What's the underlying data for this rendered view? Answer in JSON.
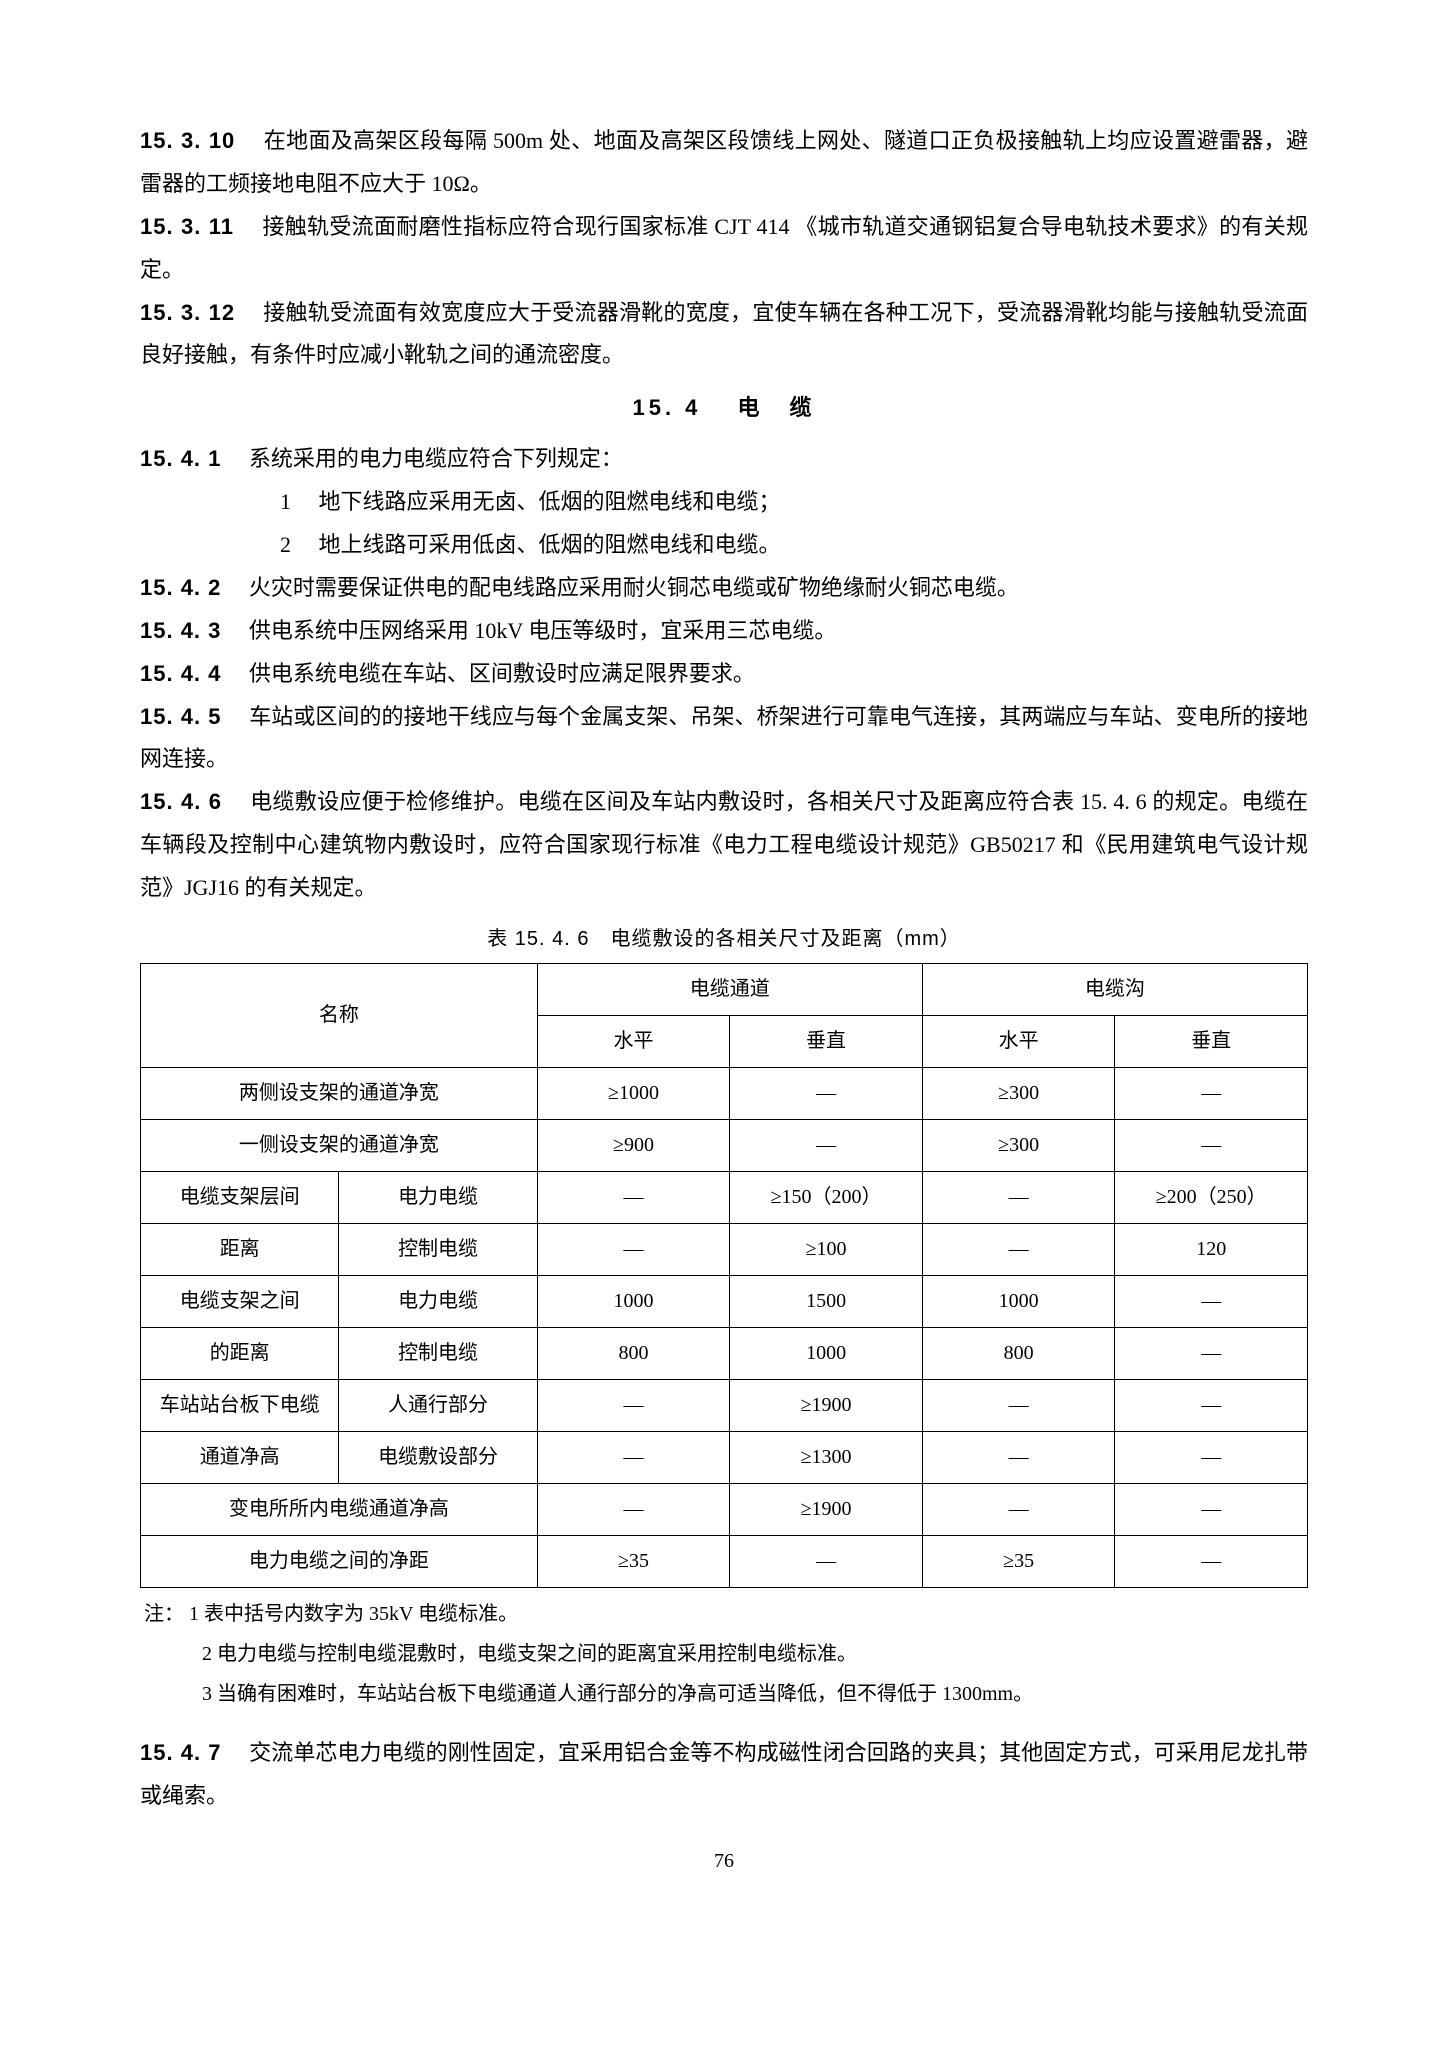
{
  "p1": "15. 3. 10　 在地面及高架区段每隔 500m 处、地面及高架区段馈线上网处、隧道口正负极接触轨上均应设置避雷器，避雷器的工频接地电阻不应大于 10Ω。",
  "p2": "15. 3. 11　 接触轨受流面耐磨性指标应符合现行国家标准 CJT 414 《城市轨道交通钢铝复合导电轨技术要求》的有关规定。",
  "p3": "15. 3. 12　 接触轨受流面有效宽度应大于受流器滑靴的宽度，宜使车辆在各种工况下，受流器滑靴均能与接触轨受流面良好接触，有条件时应减小靴轨之间的通流密度。",
  "sectionTitle": "15. 4　 电　缆",
  "p4": "15. 4. 1　 系统采用的电力电缆应符合下列规定：",
  "li1": "1　 地下线路应采用无卤、低烟的阻燃电线和电缆；",
  "li2": "2　 地上线路可采用低卤、低烟的阻燃电线和电缆。",
  "p5": "15. 4. 2　 火灾时需要保证供电的配电线路应采用耐火铜芯电缆或矿物绝缘耐火铜芯电缆。",
  "p6": "15. 4. 3　 供电系统中压网络采用 10kV 电压等级时，宜采用三芯电缆。",
  "p7": "15. 4. 4　 供电系统电缆在车站、区间敷设时应满足限界要求。",
  "p8": "15. 4. 5　 车站或区间的的接地干线应与每个金属支架、吊架、桥架进行可靠电气连接，其两端应与车站、变电所的接地网连接。",
  "p9": "15. 4. 6　 电缆敷设应便于检修维护。电缆在区间及车站内敷设时，各相关尺寸及距离应符合表 15. 4. 6 的规定。电缆在车辆段及控制中心建筑物内敷设时，应符合国家现行标准《电力工程电缆设计规范》GB50217 和《民用建筑电气设计规范》JGJ16 的有关规定。",
  "tableCaption": "表 15. 4. 6　电缆敷设的各相关尺寸及距离（mm）",
  "th_name": "名称",
  "th_channel": "电缆通道",
  "th_trench": "电缆沟",
  "th_h": "水平",
  "th_v": "垂直",
  "r1_name": "两侧设支架的通道净宽",
  "r1_c1": "≥1000",
  "r1_c2": "—",
  "r1_c3": "≥300",
  "r1_c4": "—",
  "r2_name": "一侧设支架的通道净宽",
  "r2_c1": "≥900",
  "r2_c2": "—",
  "r2_c3": "≥300",
  "r2_c4": "—",
  "r3_name1": "电缆支架层间",
  "r3_name2": "电力电缆",
  "r3_c1": "—",
  "r3_c2": "≥150（200）",
  "r3_c3": "—",
  "r3_c4": "≥200（250）",
  "r4_name1": "距离",
  "r4_name2": "控制电缆",
  "r4_c1": "—",
  "r4_c2": "≥100",
  "r4_c3": "—",
  "r4_c4": "120",
  "r5_name1": "电缆支架之间",
  "r5_name2": "电力电缆",
  "r5_c1": "1000",
  "r5_c2": "1500",
  "r5_c3": "1000",
  "r5_c4": "—",
  "r6_name1": "的距离",
  "r6_name2": "控制电缆",
  "r6_c1": "800",
  "r6_c2": "1000",
  "r6_c3": "800",
  "r6_c4": "—",
  "r7_name1": "车站站台板下电缆",
  "r7_name2": "人通行部分",
  "r7_c1": "—",
  "r7_c2": "≥1900",
  "r7_c3": "—",
  "r7_c4": "—",
  "r8_name1": "通道净高",
  "r8_name2": "电缆敷设部分",
  "r8_c1": "—",
  "r8_c2": "≥1300",
  "r8_c3": "—",
  "r8_c4": "—",
  "r9_name": "变电所所内电缆通道净高",
  "r9_c1": "—",
  "r9_c2": "≥1900",
  "r9_c3": "—",
  "r9_c4": "—",
  "r10_name": "电力电缆之间的净距",
  "r10_c1": "≥35",
  "r10_c2": "—",
  "r10_c3": "≥35",
  "r10_c4": "—",
  "noteLabel": "注：",
  "note1": "1 表中括号内数字为 35kV 电缆标准。",
  "note2": "2 电力电缆与控制电缆混敷时，电缆支架之间的距离宜采用控制电缆标准。",
  "note3": "3 当确有困难时，车站站台板下电缆通道人通行部分的净高可适当降低，但不得低于 1300mm。",
  "p10": "15. 4. 7　 交流单芯电力电缆的刚性固定，宜采用铝合金等不构成磁性闭合回路的夹具；其他固定方式，可采用尼龙扎带或绳索。",
  "pageNum": "76"
}
